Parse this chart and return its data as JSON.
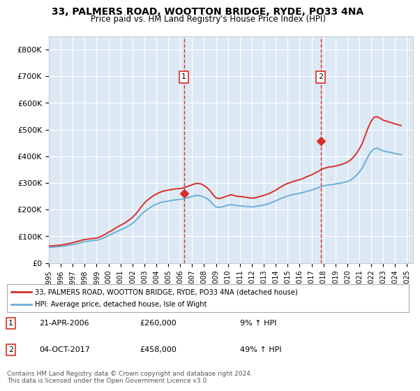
{
  "title": "33, PALMERS ROAD, WOOTTON BRIDGE, RYDE, PO33 4NA",
  "subtitle": "Price paid vs. HM Land Registry's House Price Index (HPI)",
  "ylabel_ticks": [
    "£0",
    "£100K",
    "£200K",
    "£300K",
    "£400K",
    "£500K",
    "£600K",
    "£700K",
    "£800K"
  ],
  "ytick_values": [
    0,
    100000,
    200000,
    300000,
    400000,
    500000,
    600000,
    700000,
    800000
  ],
  "ylim": [
    0,
    850000
  ],
  "xlim_start": 1995.0,
  "xlim_end": 2025.5,
  "background_color": "#dce9f5",
  "plot_bg_color": "#dce9f5",
  "grid_color": "#ffffff",
  "purchase1_x": 2006.31,
  "purchase1_y": 260000,
  "purchase1_label": "1",
  "purchase1_date": "21-APR-2006",
  "purchase1_price": "£260,000",
  "purchase1_hpi": "9% ↑ HPI",
  "purchase2_x": 2017.76,
  "purchase2_y": 458000,
  "purchase2_label": "2",
  "purchase2_date": "04-OCT-2017",
  "purchase2_price": "£458,000",
  "purchase2_hpi": "49% ↑ HPI",
  "line_color_hpi": "#6baed6",
  "line_color_property": "#d73027",
  "legend_property": "33, PALMERS ROAD, WOOTTON BRIDGE, RYDE, PO33 4NA (detached house)",
  "legend_hpi": "HPI: Average price, detached house, Isle of Wight",
  "footer": "Contains HM Land Registry data © Crown copyright and database right 2024.\nThis data is licensed under the Open Government Licence v3.0.",
  "hpi_years": [
    1995,
    1995.25,
    1995.5,
    1995.75,
    1996,
    1996.25,
    1996.5,
    1996.75,
    1997,
    1997.25,
    1997.5,
    1997.75,
    1998,
    1998.25,
    1998.5,
    1998.75,
    1999,
    1999.25,
    1999.5,
    1999.75,
    2000,
    2000.25,
    2000.5,
    2000.75,
    2001,
    2001.25,
    2001.5,
    2001.75,
    2002,
    2002.25,
    2002.5,
    2002.75,
    2003,
    2003.25,
    2003.5,
    2003.75,
    2004,
    2004.25,
    2004.5,
    2004.75,
    2005,
    2005.25,
    2005.5,
    2005.75,
    2006,
    2006.25,
    2006.5,
    2006.75,
    2007,
    2007.25,
    2007.5,
    2007.75,
    2008,
    2008.25,
    2008.5,
    2008.75,
    2009,
    2009.25,
    2009.5,
    2009.75,
    2010,
    2010.25,
    2010.5,
    2010.75,
    2011,
    2011.25,
    2011.5,
    2011.75,
    2012,
    2012.25,
    2012.5,
    2012.75,
    2013,
    2013.25,
    2013.5,
    2013.75,
    2014,
    2014.25,
    2014.5,
    2014.75,
    2015,
    2015.25,
    2015.5,
    2015.75,
    2016,
    2016.25,
    2016.5,
    2016.75,
    2017,
    2017.25,
    2017.5,
    2017.75,
    2018,
    2018.25,
    2018.5,
    2018.75,
    2019,
    2019.25,
    2019.5,
    2019.75,
    2020,
    2020.25,
    2020.5,
    2020.75,
    2021,
    2021.25,
    2021.5,
    2021.75,
    2022,
    2022.25,
    2022.5,
    2022.75,
    2023,
    2023.25,
    2023.5,
    2023.75,
    2024,
    2024.25,
    2024.5
  ],
  "hpi_values": [
    58000,
    59000,
    60000,
    61000,
    62000,
    63000,
    65000,
    67000,
    69000,
    71000,
    74000,
    77000,
    80000,
    81000,
    83000,
    84000,
    85000,
    88000,
    92000,
    97000,
    103000,
    108000,
    114000,
    119000,
    124000,
    129000,
    135000,
    141000,
    148000,
    158000,
    170000,
    182000,
    192000,
    200000,
    208000,
    215000,
    220000,
    225000,
    228000,
    230000,
    232000,
    234000,
    236000,
    237000,
    238000,
    240000,
    243000,
    246000,
    249000,
    252000,
    253000,
    251000,
    247000,
    241000,
    232000,
    220000,
    210000,
    208000,
    210000,
    213000,
    216000,
    219000,
    217000,
    215000,
    214000,
    213000,
    212000,
    211000,
    210000,
    211000,
    213000,
    215000,
    217000,
    220000,
    224000,
    228000,
    233000,
    238000,
    243000,
    247000,
    251000,
    254000,
    257000,
    259000,
    261000,
    264000,
    267000,
    270000,
    273000,
    277000,
    281000,
    285000,
    289000,
    291000,
    293000,
    294000,
    296000,
    298000,
    300000,
    302000,
    305000,
    310000,
    318000,
    328000,
    340000,
    356000,
    378000,
    400000,
    418000,
    428000,
    430000,
    425000,
    420000,
    418000,
    415000,
    413000,
    410000,
    408000,
    406000
  ],
  "prop_years": [
    1995,
    1995.25,
    1995.5,
    1995.75,
    1996,
    1996.25,
    1996.5,
    1996.75,
    1997,
    1997.25,
    1997.5,
    1997.75,
    1998,
    1998.25,
    1998.5,
    1998.75,
    1999,
    1999.25,
    1999.5,
    1999.75,
    2000,
    2000.25,
    2000.5,
    2000.75,
    2001,
    2001.25,
    2001.5,
    2001.75,
    2002,
    2002.25,
    2002.5,
    2002.75,
    2003,
    2003.25,
    2003.5,
    2003.75,
    2004,
    2004.25,
    2004.5,
    2004.75,
    2005,
    2005.25,
    2005.5,
    2005.75,
    2006,
    2006.25,
    2006.5,
    2006.75,
    2007,
    2007.25,
    2007.5,
    2007.75,
    2008,
    2008.25,
    2008.5,
    2008.75,
    2009,
    2009.25,
    2009.5,
    2009.75,
    2010,
    2010.25,
    2010.5,
    2010.75,
    2011,
    2011.25,
    2011.5,
    2011.75,
    2012,
    2012.25,
    2012.5,
    2012.75,
    2013,
    2013.25,
    2013.5,
    2013.75,
    2014,
    2014.25,
    2014.5,
    2014.75,
    2015,
    2015.25,
    2015.5,
    2015.75,
    2016,
    2016.25,
    2016.5,
    2016.75,
    2017,
    2017.25,
    2017.5,
    2017.75,
    2018,
    2018.25,
    2018.5,
    2018.75,
    2019,
    2019.25,
    2019.5,
    2019.75,
    2020,
    2020.25,
    2020.5,
    2020.75,
    2021,
    2021.25,
    2021.5,
    2021.75,
    2022,
    2022.25,
    2022.5,
    2022.75,
    2023,
    2023.25,
    2023.5,
    2023.75,
    2024,
    2024.25,
    2024.5
  ],
  "prop_values": [
    63000,
    64000,
    65000,
    66000,
    67000,
    69000,
    71000,
    73000,
    76000,
    79000,
    82000,
    85000,
    88000,
    89000,
    91000,
    92000,
    93000,
    97000,
    102000,
    108000,
    115000,
    121000,
    128000,
    135000,
    141000,
    147000,
    154000,
    162000,
    171000,
    182000,
    196000,
    211000,
    224000,
    235000,
    244000,
    252000,
    258000,
    264000,
    268000,
    271000,
    273000,
    275000,
    277000,
    278000,
    279000,
    281000,
    285000,
    289000,
    293000,
    297000,
    298000,
    296000,
    290000,
    282000,
    271000,
    256000,
    244000,
    241000,
    244000,
    248000,
    252000,
    256000,
    253000,
    250000,
    249000,
    248000,
    246000,
    244000,
    243000,
    244000,
    247000,
    250000,
    253000,
    257000,
    261000,
    267000,
    273000,
    280000,
    287000,
    293000,
    298000,
    302000,
    306000,
    309000,
    312000,
    316000,
    321000,
    326000,
    330000,
    336000,
    342000,
    348000,
    354000,
    357000,
    360000,
    361000,
    363000,
    366000,
    369000,
    373000,
    378000,
    385000,
    396000,
    410000,
    427000,
    448000,
    478000,
    508000,
    532000,
    546000,
    548000,
    542000,
    535000,
    532000,
    528000,
    525000,
    521000,
    518000,
    515000
  ],
  "xtick_years": [
    1995,
    1996,
    1997,
    1998,
    1999,
    2000,
    2001,
    2002,
    2003,
    2004,
    2005,
    2006,
    2007,
    2008,
    2009,
    2010,
    2011,
    2012,
    2013,
    2014,
    2015,
    2016,
    2017,
    2018,
    2019,
    2020,
    2021,
    2022,
    2023,
    2024,
    2025
  ]
}
